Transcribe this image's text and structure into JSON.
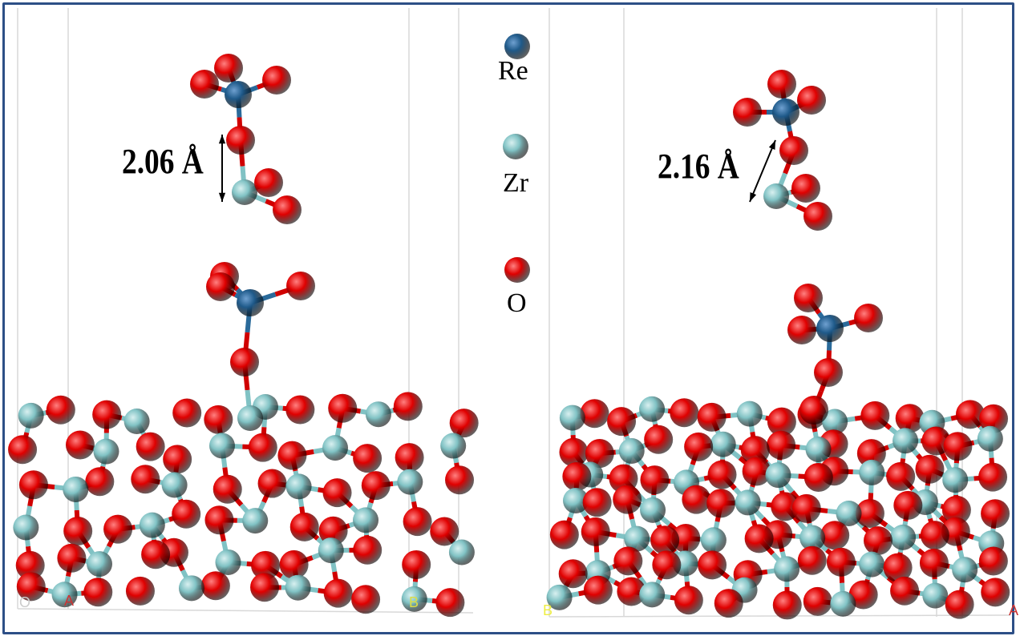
{
  "legend": [
    {
      "symbol": "Re",
      "color": "#1f5a8a"
    },
    {
      "symbol": "Zr",
      "color": "#80c2c4"
    },
    {
      "symbol": "O",
      "color": "#e00000"
    }
  ],
  "left_panel": {
    "distance_label": "2.06 Å",
    "axis_labels": {
      "origin": "O",
      "a": "A",
      "b": "B"
    }
  },
  "right_panel": {
    "distance_label": "2.16 Å",
    "axis_labels": {
      "b": "B",
      "a": "A"
    }
  },
  "colors": {
    "frame": "#2d4f86",
    "bond_zr": "#80c2c4",
    "bond_o": "#d00000"
  }
}
